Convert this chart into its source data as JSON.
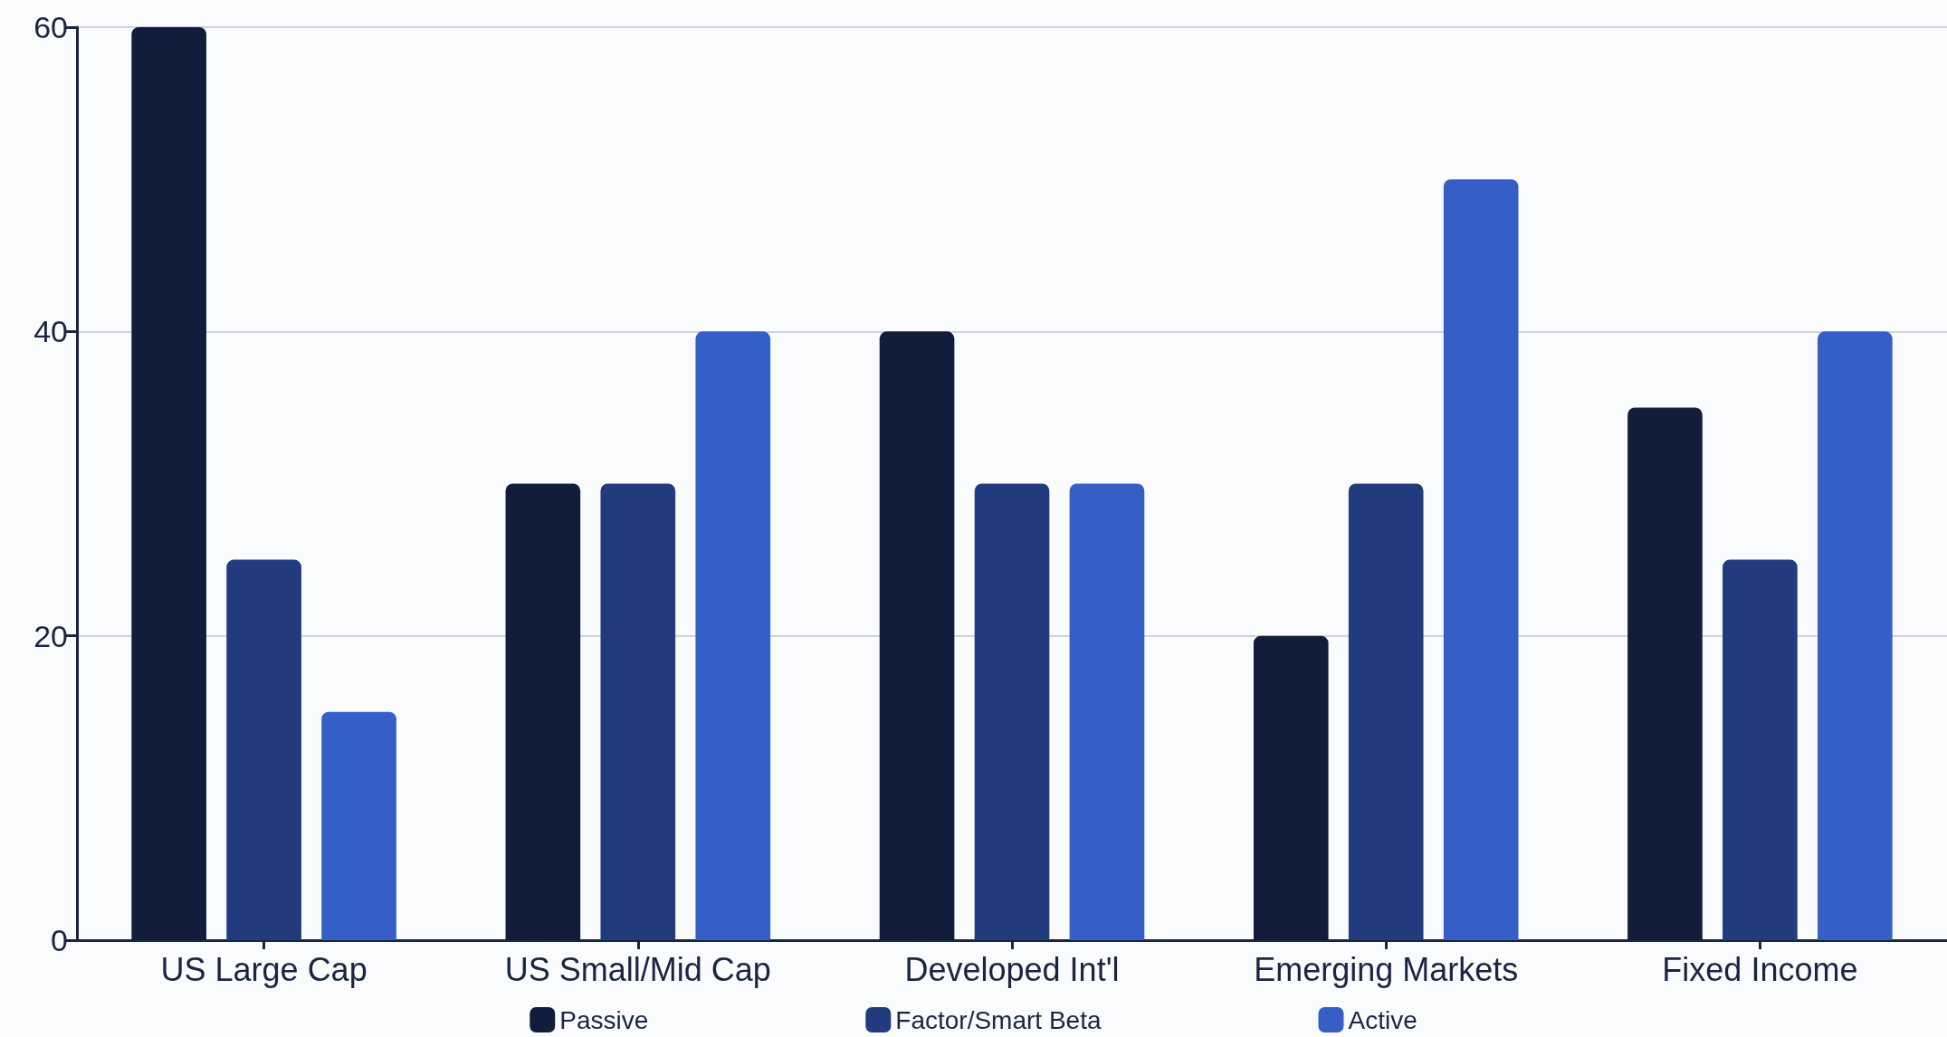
{
  "chart_data": {
    "type": "bar",
    "categories": [
      "US Large Cap",
      "US Small/Mid Cap",
      "Developed Int'l",
      "Emerging Markets",
      "Fixed Income"
    ],
    "series": [
      {
        "name": "Passive",
        "color": "#111d3b",
        "values": [
          60,
          30,
          40,
          20,
          35
        ]
      },
      {
        "name": "Factor/Smart Beta",
        "color": "#223b7e",
        "values": [
          25,
          30,
          30,
          30,
          25
        ]
      },
      {
        "name": "Active",
        "color": "#355ec6",
        "values": [
          15,
          40,
          30,
          50,
          40
        ]
      }
    ],
    "ylim": [
      0,
      60
    ],
    "yticks": [
      0,
      20,
      40,
      60
    ],
    "grid": "y",
    "legend": "bottom"
  }
}
